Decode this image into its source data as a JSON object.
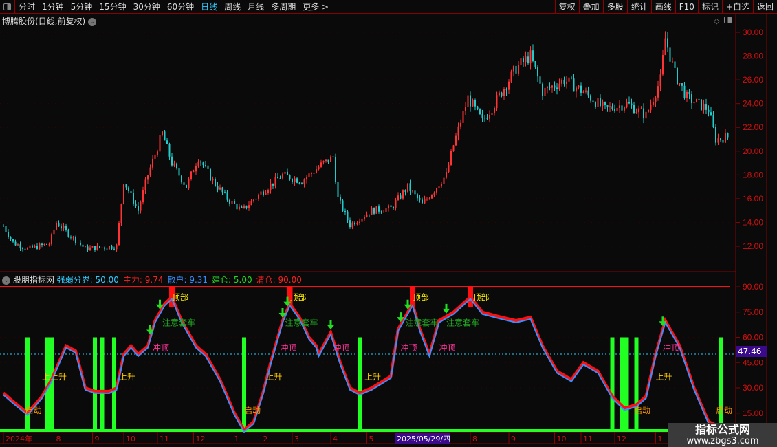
{
  "toolbar": {
    "timeframes": [
      "分时",
      "1分钟",
      "5分钟",
      "15分钟",
      "30分钟",
      "60分钟",
      "日线",
      "周线",
      "月线",
      "多周期",
      "更多 >"
    ],
    "active": "日线",
    "buttons": [
      "复权",
      "叠加",
      "多股",
      "统计",
      "画线",
      "F10",
      "标记",
      "+自选",
      "返回"
    ]
  },
  "chart_title": "博腾股份(日线,前复权)",
  "price_axis": {
    "ticks": [
      "30.00",
      "28.00",
      "26.00",
      "24.00",
      "22.00",
      "20.00",
      "18.00",
      "16.00",
      "14.00",
      "12.00"
    ],
    "min": 12,
    "max": 30
  },
  "indicator": {
    "name": "股朋指标网",
    "fields": [
      {
        "label": "强弱分界:",
        "value": "50.00",
        "color": "#3cf"
      },
      {
        "label": "主力:",
        "value": "9.74",
        "color": "#ff2020"
      },
      {
        "label": "散户:",
        "value": "9.31",
        "color": "#3a8eff"
      },
      {
        "label": "建仓:",
        "value": "5.00",
        "color": "#22dd22"
      },
      {
        "label": "清仓:",
        "value": "90.00",
        "color": "#ff2020"
      }
    ],
    "ticks": [
      "90.00",
      "75.00",
      "60.00",
      "45.00",
      "30.00",
      "15.00"
    ],
    "current_value": "47.46",
    "labels": [
      {
        "t": "启动",
        "i": 9,
        "v": 15,
        "c": "#ff9900"
      },
      {
        "t": "上上升",
        "i": 16,
        "v": 35,
        "c": "#ffcc00"
      },
      {
        "t": "上升",
        "i": 48,
        "v": 35,
        "c": "#ffcc00"
      },
      {
        "t": "冲顶",
        "i": 62,
        "v": 52,
        "c": "#ff3399"
      },
      {
        "t": "注意套牢",
        "i": 66,
        "v": 67,
        "c": "#22aa22"
      },
      {
        "t": "顶部",
        "i": 70,
        "v": 82,
        "c": "#ffee00"
      },
      {
        "t": "启动",
        "i": 100,
        "v": 15,
        "c": "#ff9900"
      },
      {
        "t": "上升",
        "i": 109,
        "v": 35,
        "c": "#ffcc00"
      },
      {
        "t": "冲顶",
        "i": 115,
        "v": 52,
        "c": "#ff3399"
      },
      {
        "t": "注意套牢",
        "i": 117,
        "v": 67,
        "c": "#22aa22"
      },
      {
        "t": "顶部",
        "i": 119,
        "v": 82,
        "c": "#ffee00"
      },
      {
        "t": "冲顶",
        "i": 137,
        "v": 52,
        "c": "#ff3399"
      },
      {
        "t": "上升",
        "i": 150,
        "v": 35,
        "c": "#ffcc00"
      },
      {
        "t": "冲顶",
        "i": 165,
        "v": 52,
        "c": "#ff3399"
      },
      {
        "t": "注意套牢",
        "i": 167,
        "v": 67,
        "c": "#22aa22"
      },
      {
        "t": "顶部",
        "i": 170,
        "v": 82,
        "c": "#ffee00"
      },
      {
        "t": "冲顶",
        "i": 181,
        "v": 52,
        "c": "#ff3399"
      },
      {
        "t": "注意套牢",
        "i": 184,
        "v": 67,
        "c": "#22aa22"
      },
      {
        "t": "顶部",
        "i": 195,
        "v": 82,
        "c": "#ffee00"
      },
      {
        "t": "启动",
        "i": 262,
        "v": 15,
        "c": "#ff9900"
      },
      {
        "t": "上升",
        "i": 271,
        "v": 35,
        "c": "#ffcc00"
      },
      {
        "t": "冲顶",
        "i": 274,
        "v": 52,
        "c": "#ff3399"
      },
      {
        "t": "启动",
        "i": 296,
        "v": 15,
        "c": "#ff9900"
      }
    ],
    "green_bars": [
      10,
      18,
      19,
      20,
      38,
      41,
      46,
      100,
      148,
      253,
      257,
      258,
      259,
      263,
      298
    ],
    "red_bars": [
      70,
      119,
      170,
      194
    ],
    "down_arrows": [
      61,
      65,
      116,
      118,
      136,
      165,
      168,
      184,
      274
    ],
    "main_line": [
      [
        0,
        27
      ],
      [
        4,
        22
      ],
      [
        10,
        15
      ],
      [
        16,
        25
      ],
      [
        20,
        35
      ],
      [
        26,
        55
      ],
      [
        30,
        52
      ],
      [
        34,
        30
      ],
      [
        38,
        28
      ],
      [
        44,
        28
      ],
      [
        47,
        30
      ],
      [
        50,
        50
      ],
      [
        53,
        55
      ],
      [
        56,
        50
      ],
      [
        60,
        55
      ],
      [
        63,
        70
      ],
      [
        67,
        80
      ],
      [
        70,
        84
      ],
      [
        74,
        70
      ],
      [
        80,
        55
      ],
      [
        84,
        50
      ],
      [
        90,
        35
      ],
      [
        96,
        15
      ],
      [
        100,
        5
      ],
      [
        104,
        10
      ],
      [
        108,
        28
      ],
      [
        111,
        45
      ],
      [
        116,
        70
      ],
      [
        119,
        80
      ],
      [
        123,
        72
      ],
      [
        127,
        60
      ],
      [
        130,
        55
      ],
      [
        131,
        50
      ],
      [
        136,
        63
      ],
      [
        140,
        45
      ],
      [
        144,
        30
      ],
      [
        148,
        27
      ],
      [
        153,
        30
      ],
      [
        161,
        37
      ],
      [
        164,
        65
      ],
      [
        170,
        80
      ],
      [
        173,
        65
      ],
      [
        177,
        50
      ],
      [
        181,
        70
      ],
      [
        187,
        75
      ],
      [
        194,
        84
      ],
      [
        199,
        75
      ],
      [
        207,
        72
      ],
      [
        213,
        70
      ],
      [
        219,
        72
      ],
      [
        224,
        55
      ],
      [
        230,
        40
      ],
      [
        236,
        35
      ],
      [
        241,
        45
      ],
      [
        247,
        40
      ],
      [
        253,
        25
      ],
      [
        258,
        18
      ],
      [
        263,
        20
      ],
      [
        267,
        25
      ],
      [
        271,
        50
      ],
      [
        275,
        70
      ],
      [
        281,
        55
      ],
      [
        287,
        30
      ],
      [
        293,
        10
      ],
      [
        301,
        5
      ]
    ]
  },
  "price_series": [
    [
      0,
      13.7
    ],
    [
      4,
      12.3
    ],
    [
      10,
      11.8
    ],
    [
      19,
      12.2
    ],
    [
      22,
      14
    ],
    [
      30,
      12.5
    ],
    [
      34,
      11.8
    ],
    [
      47,
      12
    ],
    [
      50,
      17.5
    ],
    [
      56,
      15
    ],
    [
      60,
      18
    ],
    [
      66,
      21.5
    ],
    [
      70,
      19
    ],
    [
      76,
      17
    ],
    [
      81,
      19.5
    ],
    [
      87,
      17.5
    ],
    [
      93,
      16
    ],
    [
      99,
      15
    ],
    [
      107,
      16.5
    ],
    [
      116,
      18
    ],
    [
      124,
      17.5
    ],
    [
      133,
      19
    ],
    [
      137,
      19.5
    ],
    [
      139,
      16
    ],
    [
      144,
      13.8
    ],
    [
      153,
      15
    ],
    [
      161,
      15.2
    ],
    [
      168,
      17
    ],
    [
      174,
      15.5
    ],
    [
      184,
      18
    ],
    [
      187,
      20.5
    ],
    [
      193,
      24.5
    ],
    [
      199,
      22.5
    ],
    [
      204,
      24
    ],
    [
      213,
      27
    ],
    [
      219,
      28
    ],
    [
      224,
      25
    ],
    [
      233,
      26
    ],
    [
      241,
      25
    ],
    [
      250,
      23.5
    ],
    [
      259,
      24
    ],
    [
      267,
      23
    ],
    [
      273,
      26
    ],
    [
      275,
      29.5
    ],
    [
      279,
      26.5
    ],
    [
      284,
      24.5
    ],
    [
      293,
      23.5
    ],
    [
      296,
      21
    ],
    [
      301,
      21.2
    ]
  ],
  "date_axis": [
    {
      "t": "2024年",
      "i": 0
    },
    {
      "t": "8",
      "i": 21
    },
    {
      "t": "9",
      "i": 37
    },
    {
      "t": "10",
      "i": 50
    },
    {
      "t": "11",
      "i": 64
    },
    {
      "t": "12",
      "i": 79
    },
    {
      "t": "1",
      "i": 95
    },
    {
      "t": "2",
      "i": 107
    },
    {
      "t": "3",
      "i": 120
    },
    {
      "t": "4",
      "i": 136
    },
    {
      "t": "5",
      "i": 151
    },
    {
      "t": "8",
      "i": 194
    },
    {
      "t": "9",
      "i": 210
    },
    {
      "t": "10",
      "i": 229
    },
    {
      "t": "11",
      "i": 240
    },
    {
      "t": "12",
      "i": 254
    },
    {
      "t": "1",
      "i": 271
    }
  ],
  "crosshair_date": "2025/05/29/四",
  "watermark": {
    "title": "指标公式网",
    "url": "www.zbgs3.com"
  },
  "colors": {
    "up": "#ff3333",
    "down": "#22cccc",
    "grid": "#8b0000",
    "main": "#ff1010",
    "retail": "#3a8eff",
    "build": "#22ff22"
  }
}
